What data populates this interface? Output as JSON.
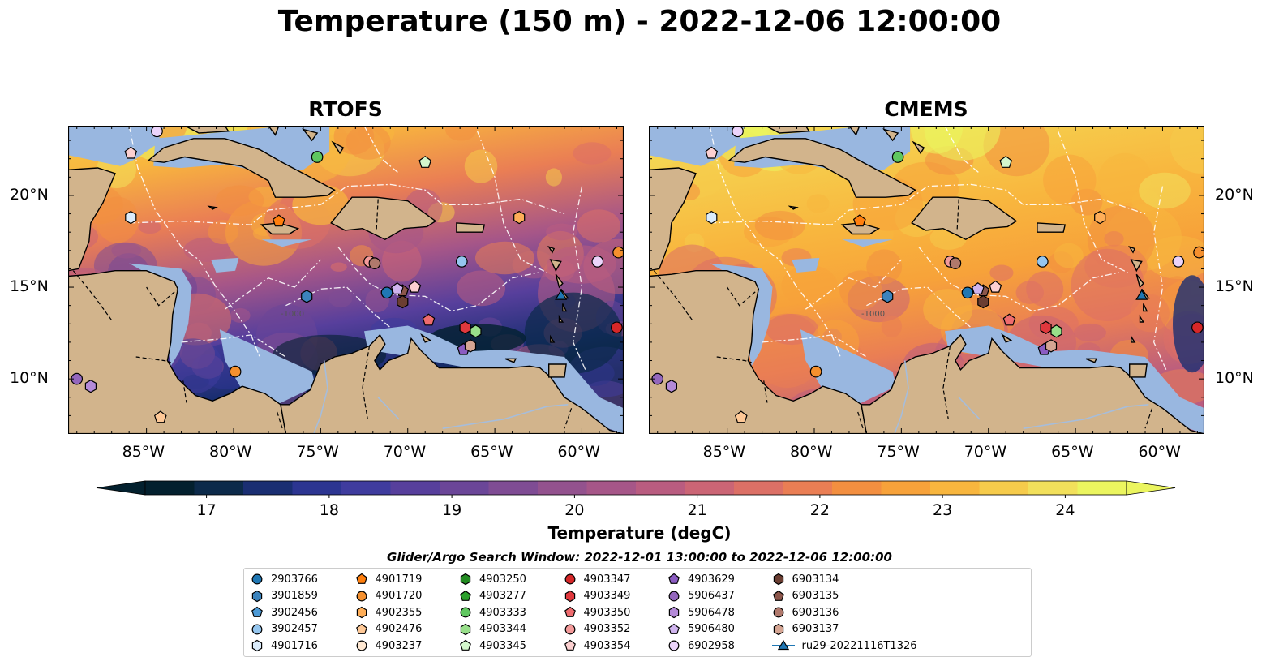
{
  "title": "Temperature (150 m) - 2022-12-06 12:00:00",
  "panels": [
    {
      "title": "RTOFS",
      "model": "rtofs"
    },
    {
      "title": "CMEMS",
      "model": "cmems"
    }
  ],
  "x_ticks": [
    "85°W",
    "80°W",
    "75°W",
    "70°W",
    "65°W",
    "60°W"
  ],
  "y_ticks": [
    "20°N",
    "15°N",
    "10°N"
  ],
  "colorbar": {
    "label": "Temperature (degC)",
    "ticks": [
      "17",
      "18",
      "19",
      "20",
      "21",
      "22",
      "23",
      "24"
    ],
    "min": 16.5,
    "max": 24.5,
    "colors": [
      "#03202e",
      "#0c2a4a",
      "#1a2e72",
      "#2c3591",
      "#3f3c9e",
      "#573f9c",
      "#6b4698",
      "#7f4c94",
      "#93528e",
      "#a65688",
      "#b95c80",
      "#cb6575",
      "#dc7066",
      "#ea7e54",
      "#f38f40",
      "#f7a23a",
      "#f8b63e",
      "#f6cb4b",
      "#f2e05b",
      "#ebf55f"
    ]
  },
  "search_window": "Glider/Argo Search Window: 2022-12-01 13:00:00 to 2022-12-06 12:00:00",
  "map_colors": {
    "land": "#d2b48c",
    "shelf": "#99b7e0",
    "eez": "#ffffff",
    "rivers": "#a6bddb"
  },
  "legend": [
    {
      "label": "2903766",
      "shape": "circle",
      "color": "#1f77b4"
    },
    {
      "label": "3901859",
      "shape": "hexagon",
      "color": "#3b83bd"
    },
    {
      "label": "3902456",
      "shape": "pentagon",
      "color": "#4c9ad6"
    },
    {
      "label": "3902457",
      "shape": "circle",
      "color": "#95c6ef"
    },
    {
      "label": "4901716",
      "shape": "hexagon",
      "color": "#dbecfb"
    },
    {
      "label": "4901719",
      "shape": "pentagon",
      "color": "#ff7f0e"
    },
    {
      "label": "4901720",
      "shape": "circle",
      "color": "#f5902e"
    },
    {
      "label": "4902355",
      "shape": "hexagon",
      "color": "#ffae58"
    },
    {
      "label": "4902476",
      "shape": "pentagon",
      "color": "#ffc997"
    },
    {
      "label": "4903237",
      "shape": "circle",
      "color": "#ffe8d2"
    },
    {
      "label": "4903250",
      "shape": "hexagon",
      "color": "#238b22"
    },
    {
      "label": "4903277",
      "shape": "pentagon",
      "color": "#2ca02c"
    },
    {
      "label": "4903333",
      "shape": "circle",
      "color": "#5fc75f"
    },
    {
      "label": "4903344",
      "shape": "hexagon",
      "color": "#98df8a"
    },
    {
      "label": "4903345",
      "shape": "pentagon",
      "color": "#d4f7cc"
    },
    {
      "label": "4903347",
      "shape": "circle",
      "color": "#d62728"
    },
    {
      "label": "4903349",
      "shape": "hexagon",
      "color": "#e0383d"
    },
    {
      "label": "4903350",
      "shape": "pentagon",
      "color": "#ee6b6e"
    },
    {
      "label": "4903352",
      "shape": "circle",
      "color": "#f49a9a"
    },
    {
      "label": "4903354",
      "shape": "pentagon",
      "color": "#fcd0d0"
    },
    {
      "label": "4903629",
      "shape": "pentagon",
      "color": "#8b5cc2"
    },
    {
      "label": "5906437",
      "shape": "circle",
      "color": "#9467bd"
    },
    {
      "label": "5906478",
      "shape": "hexagon",
      "color": "#b48ad8"
    },
    {
      "label": "5906480",
      "shape": "pentagon",
      "color": "#cfb4ee"
    },
    {
      "label": "6902958",
      "shape": "circle",
      "color": "#ecd4fb"
    },
    {
      "label": "6903134",
      "shape": "hexagon",
      "color": "#6b3e32"
    },
    {
      "label": "6903135",
      "shape": "pentagon",
      "color": "#8c564b"
    },
    {
      "label": "6903136",
      "shape": "circle",
      "color": "#b0796c"
    },
    {
      "label": "6903137",
      "shape": "hexagon",
      "color": "#d5a593"
    },
    {
      "label": "ru29-20221116T1326",
      "shape": "triangle-line",
      "color": "#1f77b4"
    }
  ],
  "markers": [
    {
      "id": "6902958",
      "lon": -84.4,
      "lat": 23.5
    },
    {
      "id": "4903354",
      "lon": -85.9,
      "lat": 22.3
    },
    {
      "id": "4903333",
      "lon": -75.2,
      "lat": 22.1
    },
    {
      "id": "4903345",
      "lon": -69.0,
      "lat": 21.8
    },
    {
      "id": "4901716",
      "lon": -85.9,
      "lat": 18.8
    },
    {
      "id": "4901719",
      "lon": -77.4,
      "lat": 18.6
    },
    {
      "id": "4902355",
      "lon": -63.6,
      "lat": 18.8
    },
    {
      "id": "4903352",
      "lon": -72.2,
      "lat": 16.4
    },
    {
      "id": "6903136",
      "lon": -71.9,
      "lat": 16.3
    },
    {
      "id": "3902457",
      "lon": -66.9,
      "lat": 16.4
    },
    {
      "id": "6902958",
      "lon": -59.1,
      "lat": 16.4
    },
    {
      "id": "4901720",
      "lon": -57.9,
      "lat": 16.9
    },
    {
      "id": "3901859",
      "lon": -75.8,
      "lat": 14.5
    },
    {
      "id": "2903766",
      "lon": -71.2,
      "lat": 14.7
    },
    {
      "id": "6903135",
      "lon": -70.3,
      "lat": 14.8
    },
    {
      "id": "6903134",
      "lon": -70.3,
      "lat": 14.2
    },
    {
      "id": "5906480",
      "lon": -70.6,
      "lat": 14.9
    },
    {
      "id": "4903354",
      "lon": -69.6,
      "lat": 15.0
    },
    {
      "id": "4903350",
      "lon": -68.8,
      "lat": 13.2
    },
    {
      "id": "4903349",
      "lon": -66.7,
      "lat": 12.8
    },
    {
      "id": "4903344",
      "lon": -66.1,
      "lat": 12.6
    },
    {
      "id": "4903629",
      "lon": -66.8,
      "lat": 11.6
    },
    {
      "id": "6903137",
      "lon": -66.4,
      "lat": 11.8
    },
    {
      "id": "4903347",
      "lon": -58.0,
      "lat": 12.8
    },
    {
      "id": "4901720",
      "lon": -79.9,
      "lat": 10.4
    },
    {
      "id": "5906437",
      "lon": -89.0,
      "lat": 10.0
    },
    {
      "id": "5906478",
      "lon": -88.2,
      "lat": 9.6
    },
    {
      "id": "4902476",
      "lon": -84.2,
      "lat": 7.9
    },
    {
      "id": "ru29-20221116T1326",
      "lon": -61.2,
      "lat": 14.5
    }
  ]
}
